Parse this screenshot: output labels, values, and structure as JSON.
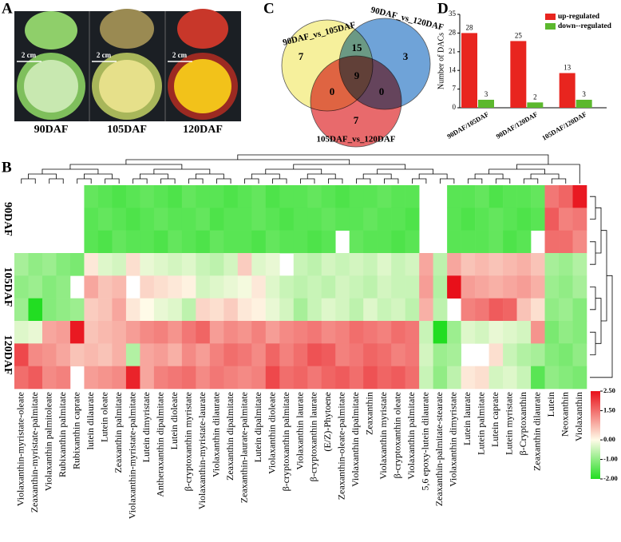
{
  "panel_labels": [
    "A",
    "B",
    "C",
    "D"
  ],
  "photo": {
    "scale_label": "2 cm",
    "stages": [
      "90DAF",
      "105DAF",
      "120DAF"
    ]
  },
  "chart_data": [
    {
      "type": "venn",
      "sets": [
        {
          "name": "90DAF_vs_105DAF",
          "color": "#f6f09c"
        },
        {
          "name": "90DAF_vs_120DAF",
          "color": "#6fa3d8"
        },
        {
          "name": "105DAF_vs_120DAF",
          "color": "#e86a6c"
        }
      ],
      "regions": [
        {
          "sets": [
            0
          ],
          "value": 7
        },
        {
          "sets": [
            1
          ],
          "value": 3
        },
        {
          "sets": [
            2
          ],
          "value": 7
        },
        {
          "sets": [
            0,
            1
          ],
          "value": 15
        },
        {
          "sets": [
            0,
            2
          ],
          "value": 0
        },
        {
          "sets": [
            1,
            2
          ],
          "value": 0
        },
        {
          "sets": [
            0,
            1,
            2
          ],
          "value": 9
        }
      ]
    },
    {
      "type": "bar",
      "y_label": "Number of DACs",
      "categories": [
        "90DAF/105DAF",
        "90DAF/120DAF",
        "105DAF/120DAF"
      ],
      "series": [
        {
          "name": "up-regulated",
          "color": "#e8251f",
          "values": [
            28,
            25,
            13
          ]
        },
        {
          "name": "down--regulated",
          "color": "#5cb82e",
          "values": [
            3,
            2,
            3
          ]
        }
      ],
      "ylim": [
        0,
        35
      ],
      "yticks": [
        0,
        7,
        14,
        21,
        28,
        35
      ],
      "legend": "top-right"
    },
    {
      "type": "heatmap",
      "columns": [
        "Violaxanthin-myristate-oleate",
        "Zeaxanthin-myristate-palmitate",
        "Violaxanthin palmitoleate",
        "Rubixanthin palmitate",
        "Rubixanthin caprate",
        "lutein dilaurate",
        "Lutein oleate",
        "Zeaxanthin palmitate",
        "Violaxanthin-myristate-palmitate",
        "Lutein dimyristate",
        "Antheraxanthin dipalmitate",
        "Lutein dioleate",
        "β-cryptoxanthin myristate",
        "Violaxanthin-myristate-laurate",
        "Violaxanthin dilaurate",
        "Zeaxanthin dipalmitate",
        "Zeaxanthin-laurate-palmitate",
        "Lutein dipalmitate",
        "Violaxanthin dioleate",
        "β-cryptoxanthin palmitate",
        "Violaxanthin laurate",
        "β-cryptoxanthin laurate",
        "(E/Z)-Phytoene",
        "Zeaxanthin-oleate-palmitate",
        "Violaxanthin dipalmitate",
        "Zeaxanthin",
        "Violaxanthin myristate",
        "β-cryptoxanthin oleate",
        "Violaxanthin palmitate",
        "5,6 epoxy-lutein dilaurate",
        "Zeaxanthin-palmitate-stearate",
        "Violaxanthin dimyristate",
        "Lutein laurate",
        "Lutein palmitate",
        "Lutein caprate",
        "Lutein myristate",
        "β-Cryptoxanthin",
        "Zeaxanthin dilaurate",
        "Lutein",
        "Neoxanthin",
        "Violaxanthin"
      ],
      "row_groups": [
        {
          "label": "90DAF",
          "rows": [
            [
              null,
              null,
              null,
              null,
              null,
              -1.4,
              -1.5,
              -1.6,
              -1.5,
              -1.4,
              -1.5,
              -1.6,
              -1.4,
              -1.5,
              -1.5,
              -1.6,
              -1.5,
              -1.4,
              -1.6,
              -1.5,
              -1.5,
              -1.4,
              -1.5,
              -1.6,
              -1.5,
              -1.5,
              -1.4,
              -1.5,
              -1.5,
              null,
              null,
              -1.5,
              -1.5,
              -1.4,
              -1.6,
              -1.5,
              -1.5,
              -1.4,
              1.4,
              1.6,
              2.4
            ],
            [
              null,
              null,
              null,
              null,
              null,
              -1.5,
              -1.4,
              -1.5,
              -1.6,
              -1.5,
              -1.4,
              -1.5,
              -1.5,
              -1.4,
              -1.6,
              -1.5,
              -1.5,
              -1.4,
              -1.5,
              -1.6,
              -1.5,
              -1.5,
              -1.4,
              -1.5,
              -1.5,
              -1.4,
              -1.5,
              -1.5,
              -1.6,
              null,
              null,
              -1.5,
              -1.6,
              -1.5,
              -1.4,
              -1.5,
              -1.6,
              -1.5,
              1.7,
              1.3,
              1.4
            ],
            [
              null,
              null,
              null,
              null,
              null,
              -1.5,
              -1.6,
              -1.4,
              -1.5,
              -1.5,
              -1.6,
              -1.4,
              -1.5,
              -1.6,
              -1.4,
              -1.5,
              -1.5,
              -1.6,
              -1.4,
              -1.5,
              -1.5,
              -1.6,
              -1.5,
              null,
              -1.4,
              -1.5,
              -1.5,
              -1.6,
              -1.5,
              null,
              null,
              -1.5,
              -1.5,
              -1.5,
              -1.4,
              -1.6,
              -1.5,
              null,
              1.5,
              1.5,
              1.2
            ]
          ]
        },
        {
          "label": "105DAF",
          "rows": [
            [
              -0.8,
              -1.0,
              -0.9,
              -1.1,
              -1.2,
              0.2,
              -0.3,
              -0.4,
              0.3,
              -0.2,
              -0.3,
              -0.4,
              -0.3,
              -0.5,
              -0.6,
              -0.4,
              0.5,
              -0.3,
              -0.2,
              null,
              -0.5,
              -0.6,
              -0.4,
              -0.5,
              -0.4,
              -0.5,
              -0.3,
              -0.5,
              -0.4,
              0.9,
              -0.6,
              0.9,
              0.6,
              0.7,
              0.6,
              0.7,
              0.8,
              0.6,
              -0.8,
              -0.9,
              -0.7
            ],
            [
              -1.0,
              -0.9,
              -1.1,
              -1.0,
              null,
              0.9,
              0.6,
              0.7,
              null,
              0.4,
              0.3,
              0.2,
              0.1,
              -0.4,
              -0.3,
              -0.2,
              -0.1,
              0.2,
              -0.3,
              -0.5,
              -0.6,
              -0.5,
              -0.6,
              -0.4,
              -0.5,
              -0.6,
              -0.4,
              -0.5,
              -0.5,
              1.0,
              -0.7,
              2.5,
              1.0,
              0.9,
              0.8,
              0.9,
              1.0,
              0.8,
              -0.9,
              -1.0,
              -0.8
            ],
            [
              -0.9,
              -2.0,
              -1.1,
              -1.0,
              -0.9,
              0.5,
              0.6,
              0.9,
              0.2,
              0.0,
              -0.2,
              -0.3,
              -0.6,
              0.4,
              0.3,
              0.5,
              0.2,
              0.1,
              -0.2,
              -0.4,
              -0.8,
              -0.5,
              -0.3,
              -0.4,
              -0.6,
              -0.3,
              -0.5,
              -0.4,
              -0.6,
              0.8,
              -0.6,
              null,
              1.3,
              1.4,
              1.7,
              1.6,
              0.6,
              0.3,
              -1.0,
              -0.9,
              -1.1
            ]
          ]
        },
        {
          "label": "120DAF",
          "rows": [
            [
              -0.3,
              -0.2,
              0.9,
              1.0,
              2.4,
              0.6,
              0.7,
              0.8,
              1.0,
              1.2,
              1.3,
              1.1,
              1.4,
              1.6,
              1.0,
              1.2,
              1.1,
              1.3,
              1.0,
              1.2,
              1.3,
              1.4,
              1.2,
              1.3,
              1.5,
              1.4,
              1.3,
              1.5,
              1.4,
              -0.5,
              -2.0,
              -0.9,
              -0.3,
              -0.4,
              -0.2,
              -0.3,
              -0.4,
              1.1,
              -1.2,
              -1.0,
              -1.1
            ],
            [
              1.9,
              1.2,
              1.1,
              0.9,
              0.6,
              0.7,
              0.6,
              0.8,
              -0.7,
              0.9,
              1.0,
              0.8,
              1.2,
              1.0,
              1.3,
              1.5,
              1.4,
              1.2,
              1.6,
              1.3,
              1.5,
              1.8,
              1.7,
              1.3,
              1.4,
              1.6,
              1.5,
              1.3,
              1.4,
              -0.4,
              -0.9,
              -0.8,
              null,
              null,
              0.3,
              -0.5,
              -0.7,
              -0.8,
              -1.1,
              -1.2,
              -1.0
            ],
            [
              1.5,
              1.7,
              1.2,
              1.3,
              null,
              1.0,
              1.1,
              1.2,
              2.3,
              0.9,
              1.3,
              1.4,
              1.5,
              1.2,
              1.4,
              1.3,
              1.2,
              1.3,
              1.9,
              1.5,
              1.6,
              1.4,
              1.6,
              1.7,
              1.5,
              1.8,
              1.6,
              1.7,
              1.5,
              -0.5,
              -1.0,
              -0.6,
              0.2,
              0.3,
              -0.4,
              -0.3,
              -0.5,
              -1.5,
              -1.0,
              -1.1,
              -1.2
            ]
          ]
        }
      ],
      "colormap": {
        "values": [
          -2,
          0,
          2.5
        ],
        "colors": [
          "#22dd22",
          "#fffbe8",
          "#e8101a"
        ]
      },
      "colorbar_ticks": [
        {
          "value": 2.5,
          "label": "2.50"
        },
        {
          "value": 1.5,
          "label": "1.50"
        },
        {
          "value": 0,
          "label": "0.00"
        },
        {
          "value": -1,
          "label": "-1.00"
        },
        {
          "value": -2,
          "label": "-2.00"
        }
      ]
    }
  ]
}
